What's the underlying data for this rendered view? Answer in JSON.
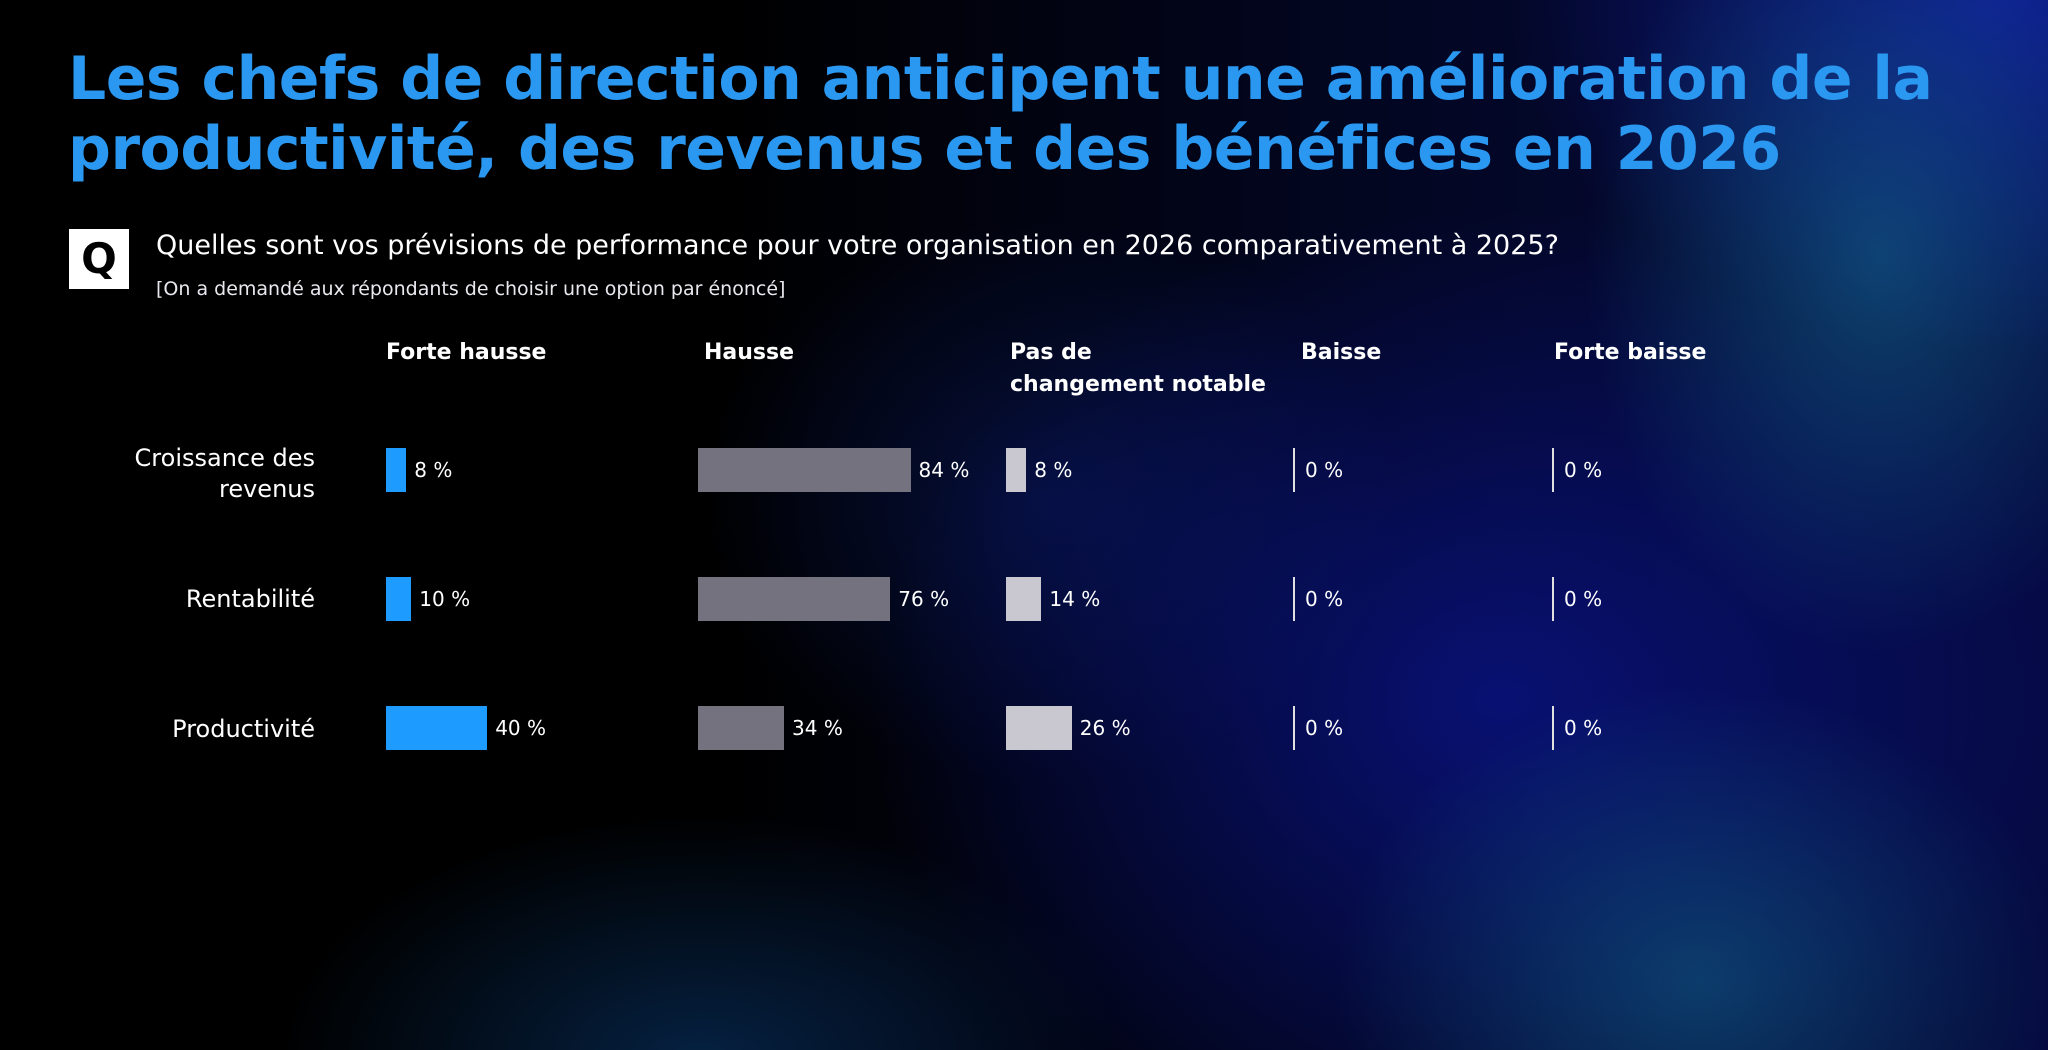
{
  "title_lines": [
    "Les chefs de direction anticipent une amélioration de la",
    "productivité, des revenus et des bénéfices en 2026"
  ],
  "question_marker": "Q",
  "question": "Quelles sont vos prévisions de performance pour votre organisation en 2026 comparativement à 2025?",
  "note": "[On a demandé aux répondants de choisir une option par énoncé]",
  "colors": {
    "title": "#2a97f0",
    "forte_hausse": "#1e9bff",
    "hausse": "#74727f",
    "pas_de_changement": "#c9c8d0",
    "zero_line": "#e0e0e0"
  },
  "chart_data": {
    "type": "bar",
    "orientation": "horizontal",
    "categories": [
      "Croissance des revenus",
      "Rentabilité",
      "Productivité"
    ],
    "category_labels": [
      [
        "Croissance des",
        "revenus"
      ],
      [
        "Rentabilité"
      ],
      [
        "Productivité"
      ]
    ],
    "series": [
      {
        "name": "Forte hausse",
        "header_lines": [
          "Forte hausse"
        ],
        "values": [
          8,
          10,
          40
        ],
        "labels": [
          "8 %",
          "10 %",
          "40 %"
        ]
      },
      {
        "name": "Hausse",
        "header_lines": [
          "Hausse"
        ],
        "values": [
          84,
          76,
          34
        ],
        "labels": [
          "84 %",
          "76 %",
          "34 %"
        ]
      },
      {
        "name": "Pas de changement notable",
        "header_lines": [
          "Pas de",
          "changement notable"
        ],
        "values": [
          8,
          14,
          26
        ],
        "labels": [
          "8 %",
          "14 %",
          "26 %"
        ]
      },
      {
        "name": "Baisse",
        "header_lines": [
          "Baisse"
        ],
        "values": [
          0,
          0,
          0
        ],
        "labels": [
          "0 %",
          "0 %",
          "0 %"
        ]
      },
      {
        "name": "Forte baisse",
        "header_lines": [
          "Forte baisse"
        ],
        "values": [
          0,
          0,
          0
        ],
        "labels": [
          "0 %",
          "0 %",
          "0 %"
        ]
      }
    ],
    "unit": "%",
    "xlim": [
      0,
      100
    ],
    "grid": false,
    "legend": "column headers above chart"
  }
}
